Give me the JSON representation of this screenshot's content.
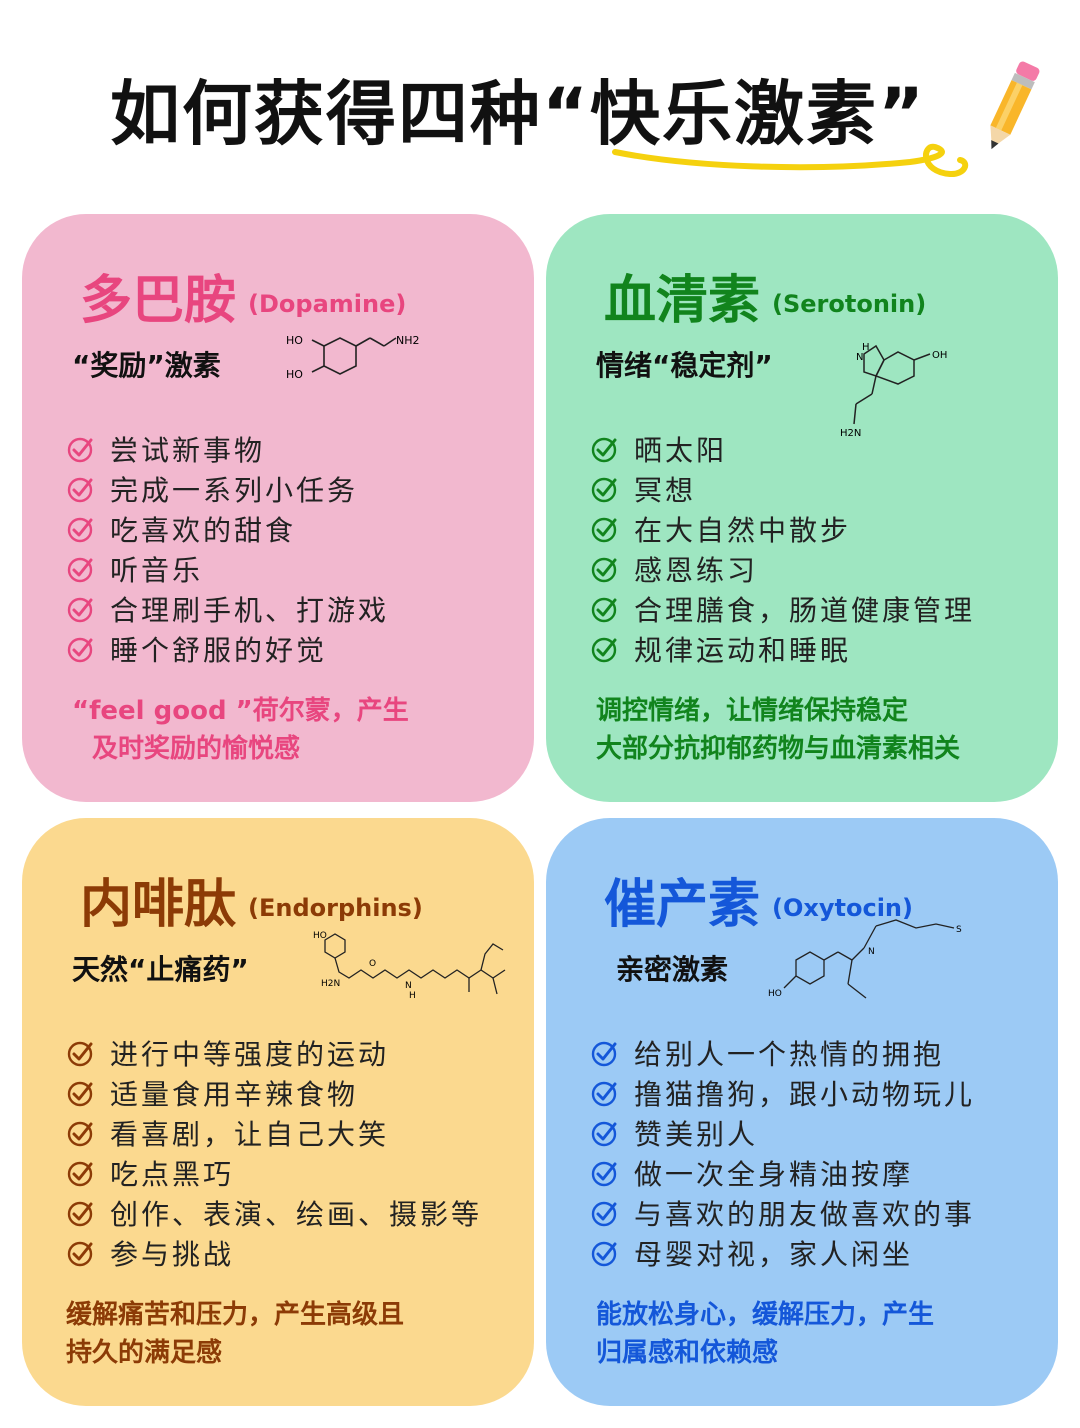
{
  "title": "如何获得四种“快乐激素”",
  "colors": {
    "dopamine": "#e8467f",
    "serotonin": "#11841d",
    "endorphins": "#8c3b06",
    "oxytocin": "#1457d9"
  },
  "cards": {
    "dopamine": {
      "name": "多巴胺",
      "en": "(Dopamine)",
      "subtitle": "“奖励”激素",
      "items": [
        "尝试新事物",
        "完成一系列小任务",
        "吃喜欢的甜食",
        "听音乐",
        "合理刷手机、打游戏",
        "睡个舒服的好觉"
      ],
      "summary": [
        "“feel good ”荷尔蒙，产生",
        "及时奖励的愉悦感"
      ],
      "icon": "check-circle-icon"
    },
    "serotonin": {
      "name": "血清素",
      "en": "(Serotonin)",
      "subtitle": "情绪“稳定剂”",
      "items": [
        "晒太阳",
        "冥想",
        "在大自然中散步",
        "感恩练习",
        "合理膳食，肠道健康管理",
        "规律运动和睡眠"
      ],
      "summary": [
        "调控情绪，让情绪保持稳定",
        "大部分抗抑郁药物与血清素相关"
      ],
      "icon": "check-circle-icon"
    },
    "endorphins": {
      "name": "内啡肽",
      "en": "(Endorphins)",
      "subtitle": "天然“止痛药”",
      "items": [
        "进行中等强度的运动",
        "适量食用辛辣食物",
        "看喜剧，让自己大笑",
        "吃点黑巧",
        "创作、表演、绘画、摄影等",
        "参与挑战"
      ],
      "summary": [
        "缓解痛苦和压力，产生高级且",
        "持久的满足感"
      ],
      "icon": "check-circle-icon"
    },
    "oxytocin": {
      "name": "催产素",
      "en": "(Oxytocin)",
      "subtitle": "亲密激素",
      "items": [
        "给别人一个热情的拥抱",
        "撸猫撸狗，跟小动物玩儿",
        "赞美别人",
        "做一次全身精油按摩",
        "与喜欢的朋友做喜欢的事",
        "母婴对视，家人闲坐"
      ],
      "summary": [
        "能放松身心，缓解压力，产生",
        "归属感和依赖感"
      ],
      "icon": "check-circle-icon"
    }
  },
  "molecule_labels": {
    "dopamine": [
      "HO",
      "HO",
      "NH2"
    ],
    "serotonin": [
      "H",
      "N",
      "OH",
      "H2N"
    ],
    "endorphins": [
      "HO",
      "H2N",
      "O",
      "N",
      "H"
    ],
    "oxytocin": [
      "HO",
      "N",
      "S"
    ]
  }
}
